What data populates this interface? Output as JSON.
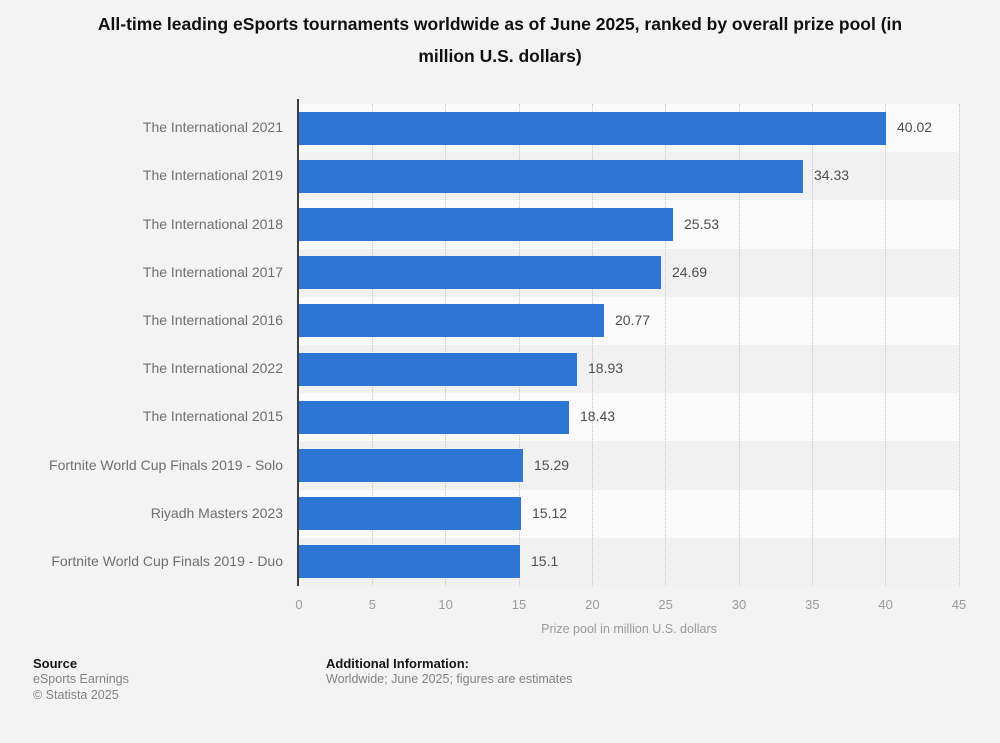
{
  "chart_data": {
    "type": "bar",
    "orientation": "horizontal",
    "title": "All-time leading eSports tournaments worldwide as of June 2025, ranked by overall prize pool (in million U.S. dollars)",
    "categories": [
      "The International 2021",
      "The International 2019",
      "The International 2018",
      "The International 2017",
      "The International 2016",
      "The International 2022",
      "The International 2015",
      "Fortnite World Cup Finals 2019 - Solo",
      "Riyadh Masters 2023",
      "Fortnite World Cup Finals 2019 - Duo"
    ],
    "values": [
      40.02,
      34.33,
      25.53,
      24.69,
      20.77,
      18.93,
      18.43,
      15.29,
      15.12,
      15.1
    ],
    "value_labels": [
      "40.02",
      "34.33",
      "25.53",
      "24.69",
      "20.77",
      "18.93",
      "18.43",
      "15.29",
      "15.12",
      "15.1"
    ],
    "xlabel": "Prize pool in million U.S. dollars",
    "xlim": [
      0,
      45
    ],
    "xticks": [
      0,
      5,
      10,
      15,
      20,
      25,
      30,
      35,
      40,
      45
    ],
    "bar_color": "#2d76d6",
    "grid": "vertical dotted gridlines at each x tick",
    "legend": "none",
    "row_stripe_colors": [
      "#fafafa",
      "#f1f1f2"
    ]
  },
  "footer": {
    "source_heading": "Source",
    "source_lines": [
      "eSports Earnings",
      "© Statista 2025"
    ],
    "additional_heading": "Additional Information:",
    "additional_lines": [
      "Worldwide; June 2025; figures are estimates"
    ]
  }
}
